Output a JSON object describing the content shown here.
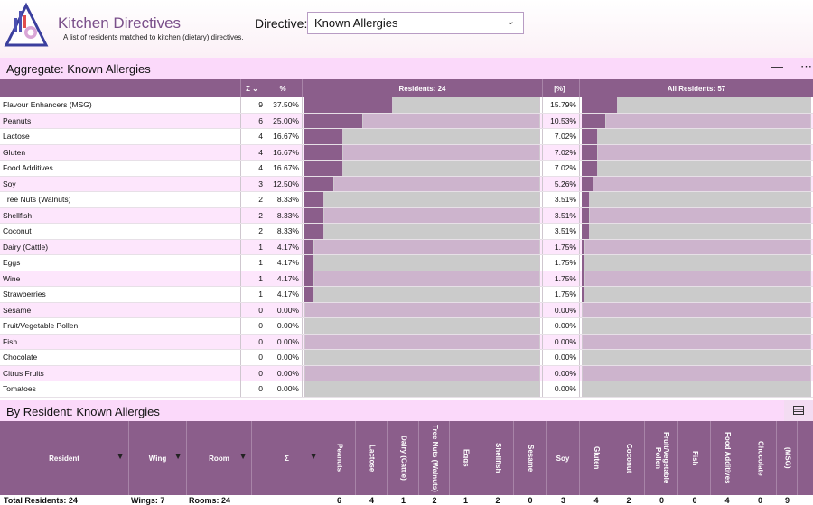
{
  "app": {
    "title": "Kitchen Directives",
    "subtitle": "A list of residents matched to kitchen (dietary) directives."
  },
  "directive": {
    "label": "Directive:",
    "value": "Known Allergies"
  },
  "aggregate": {
    "title": "Aggregate: Known Allergies",
    "minimize": "—",
    "more": "⋯",
    "headers": {
      "sum": "Σ",
      "sort": "⌄",
      "pct": "%",
      "residents": "Residents: 24",
      "pct2": "[%]",
      "all": "All Residents: 57"
    },
    "rows": [
      {
        "name": "Flavour Enhancers (MSG)",
        "n": "9",
        "p": "37.50%",
        "p2": "15.79%",
        "f1": 0.375,
        "f2": 0.1579
      },
      {
        "name": "Peanuts",
        "n": "6",
        "p": "25.00%",
        "p2": "10.53%",
        "f1": 0.25,
        "f2": 0.1053
      },
      {
        "name": "Lactose",
        "n": "4",
        "p": "16.67%",
        "p2": "7.02%",
        "f1": 0.1667,
        "f2": 0.0702
      },
      {
        "name": "Gluten",
        "n": "4",
        "p": "16.67%",
        "p2": "7.02%",
        "f1": 0.1667,
        "f2": 0.0702
      },
      {
        "name": "Food Additives",
        "n": "4",
        "p": "16.67%",
        "p2": "7.02%",
        "f1": 0.1667,
        "f2": 0.0702
      },
      {
        "name": "Soy",
        "n": "3",
        "p": "12.50%",
        "p2": "5.26%",
        "f1": 0.125,
        "f2": 0.0526
      },
      {
        "name": "Tree Nuts (Walnuts)",
        "n": "2",
        "p": "8.33%",
        "p2": "3.51%",
        "f1": 0.0833,
        "f2": 0.0351
      },
      {
        "name": "Shellfish",
        "n": "2",
        "p": "8.33%",
        "p2": "3.51%",
        "f1": 0.0833,
        "f2": 0.0351
      },
      {
        "name": "Coconut",
        "n": "2",
        "p": "8.33%",
        "p2": "3.51%",
        "f1": 0.0833,
        "f2": 0.0351
      },
      {
        "name": "Dairy (Cattle)",
        "n": "1",
        "p": "4.17%",
        "p2": "1.75%",
        "f1": 0.0417,
        "f2": 0.0175
      },
      {
        "name": "Eggs",
        "n": "1",
        "p": "4.17%",
        "p2": "1.75%",
        "f1": 0.0417,
        "f2": 0.0175
      },
      {
        "name": "Wine",
        "n": "1",
        "p": "4.17%",
        "p2": "1.75%",
        "f1": 0.0417,
        "f2": 0.0175
      },
      {
        "name": "Strawberries",
        "n": "1",
        "p": "4.17%",
        "p2": "1.75%",
        "f1": 0.0417,
        "f2": 0.0175
      },
      {
        "name": "Sesame",
        "n": "0",
        "p": "0.00%",
        "p2": "0.00%",
        "f1": 0,
        "f2": 0
      },
      {
        "name": "Fruit/Vegetable Pollen",
        "n": "0",
        "p": "0.00%",
        "p2": "0.00%",
        "f1": 0,
        "f2": 0
      },
      {
        "name": "Fish",
        "n": "0",
        "p": "0.00%",
        "p2": "0.00%",
        "f1": 0,
        "f2": 0
      },
      {
        "name": "Chocolate",
        "n": "0",
        "p": "0.00%",
        "p2": "0.00%",
        "f1": 0,
        "f2": 0
      },
      {
        "name": "Citrus Fruits",
        "n": "0",
        "p": "0.00%",
        "p2": "0.00%",
        "f1": 0,
        "f2": 0
      },
      {
        "name": "Tomatoes",
        "n": "0",
        "p": "0.00%",
        "p2": "0.00%",
        "f1": 0,
        "f2": 0
      }
    ]
  },
  "by_resident": {
    "title": "By Resident: Known Allergies",
    "layout_icon": "layout-icon",
    "filter_icon": "filter-icon",
    "columns": [
      {
        "label": "Resident",
        "vertical": false,
        "filter": true,
        "total": "Total Residents: 24"
      },
      {
        "label": "Wing",
        "vertical": false,
        "filter": true,
        "total": "Wings: 7"
      },
      {
        "label": "Room",
        "vertical": false,
        "filter": true,
        "total": "Rooms: 24"
      },
      {
        "label": "Σ",
        "vertical": false,
        "filter": true,
        "total": ""
      },
      {
        "label": "Peanuts",
        "vertical": true,
        "total": "6"
      },
      {
        "label": "Lactose",
        "vertical": true,
        "total": "4"
      },
      {
        "label": "Dairy (Cattle)",
        "vertical": true,
        "total": "1"
      },
      {
        "label": "Tree Nuts (Walnuts)",
        "vertical": true,
        "total": "2"
      },
      {
        "label": "Eggs",
        "vertical": true,
        "total": "1"
      },
      {
        "label": "Shellfish",
        "vertical": true,
        "total": "2"
      },
      {
        "label": "Sesame",
        "vertical": true,
        "total": "0"
      },
      {
        "label": "Soy",
        "vertical": false,
        "total": "3"
      },
      {
        "label": "Gluten",
        "vertical": true,
        "total": "4"
      },
      {
        "label": "Coconut",
        "vertical": true,
        "total": "2"
      },
      {
        "label": "Fruit/Vegetable Pollen",
        "vertical": true,
        "total": "0"
      },
      {
        "label": "Fish",
        "vertical": true,
        "total": "0"
      },
      {
        "label": "Food Additives",
        "vertical": true,
        "total": "4"
      },
      {
        "label": "Chocolate",
        "vertical": true,
        "total": "0"
      },
      {
        "label": "(MSG)",
        "vertical": true,
        "total": "9"
      }
    ]
  }
}
